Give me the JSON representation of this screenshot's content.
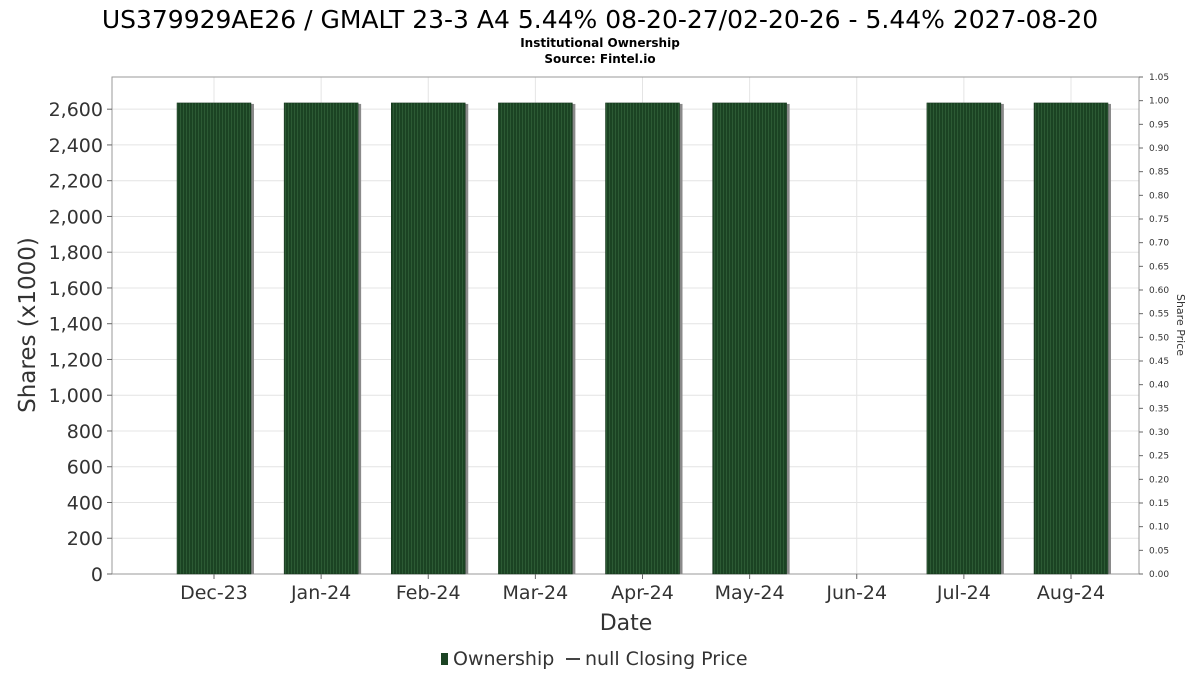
{
  "chart_data": {
    "type": "bar",
    "title": "US379929AE26 / GMALT 23-3 A4 5.44% 08-20-27/02-20-26 - 5.44% 2027-08-20",
    "subtitle_lines": [
      "Institutional Ownership",
      "Source: Fintel.io"
    ],
    "xlabel": "Date",
    "ylabel": "Shares (x1000)",
    "y2label": "Share Price",
    "categories": [
      "Dec-23",
      "Jan-24",
      "Feb-24",
      "Mar-24",
      "Apr-24",
      "May-24",
      "Jun-24",
      "Jul-24",
      "Aug-24"
    ],
    "series": [
      {
        "name": "Ownership",
        "values": [
          2635,
          2635,
          2635,
          2635,
          2635,
          2635,
          null,
          2635,
          2635
        ],
        "color": "#1b4323"
      }
    ],
    "ylim": [
      0,
      2780
    ],
    "yticks": [
      0,
      200,
      400,
      600,
      800,
      1000,
      1200,
      1400,
      1600,
      1800,
      2000,
      2200,
      2400,
      2600
    ],
    "ytick_labels": [
      "0",
      "200",
      "400",
      "600",
      "800",
      "1,000",
      "1,200",
      "1,400",
      "1,600",
      "1,800",
      "2,000",
      "2,200",
      "2,400",
      "2,600"
    ],
    "y2lim": [
      0,
      1.05
    ],
    "y2ticks": [
      0,
      0.05,
      0.1,
      0.15,
      0.2,
      0.25,
      0.3,
      0.35,
      0.4,
      0.45,
      0.5,
      0.55,
      0.6,
      0.65,
      0.7,
      0.75,
      0.8,
      0.85,
      0.9,
      0.95,
      1.0,
      1.05
    ],
    "y2tick_labels": [
      "0.00",
      "0.05",
      "0.10",
      "0.15",
      "0.20",
      "0.25",
      "0.30",
      "0.35",
      "0.40",
      "0.45",
      "0.50",
      "0.55",
      "0.60",
      "0.65",
      "0.70",
      "0.75",
      "0.80",
      "0.85",
      "0.90",
      "0.95",
      "1.00",
      "1.05"
    ],
    "legend": {
      "placement": "bottom-center",
      "items": [
        {
          "label": "Ownership",
          "marker": "bar",
          "color": "#1b4323"
        },
        {
          "label": "null Closing Price",
          "marker": "line",
          "color": "#444444"
        }
      ]
    },
    "grid": true
  }
}
